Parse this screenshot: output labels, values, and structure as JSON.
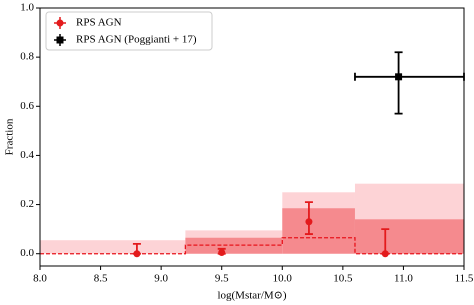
{
  "chart_data": {
    "type": "errorbar",
    "xlabel": "log(Mstar/M⊙)",
    "ylabel": "Fraction",
    "xlim": [
      8.0,
      11.5
    ],
    "ylim": [
      -0.05,
      1.0
    ],
    "xticks": [
      {
        "value": 8.0,
        "label": "8.0"
      },
      8.5,
      {
        "value": 9.0,
        "label": "9.0"
      },
      9.5,
      {
        "value": 10.0,
        "label": "10.0"
      },
      10.5,
      {
        "value": 11.0,
        "label": "11.0"
      },
      11.5
    ],
    "yticks": [
      {
        "value": 0,
        "label": "0.0"
      },
      0.2,
      0.4,
      0.6,
      0.8,
      {
        "value": 1.0,
        "label": "1.0"
      }
    ],
    "legend": "upper left",
    "bins": [
      8.0,
      9.2,
      10.0,
      10.6,
      11.5
    ],
    "step_values": [
      0.0,
      0.035,
      0.065,
      0.0
    ],
    "step_color": "#e8141c",
    "band_outer": [
      0.055,
      0.095,
      0.25,
      0.285
    ],
    "band_outer_color": "#fdd3d6",
    "band_inner": [
      0.0,
      0.065,
      0.185,
      0.14
    ],
    "band_inner_color": "#f58a8e",
    "series": [
      {
        "name": "RPS AGN",
        "color": "#e31a1c",
        "x": [
          8.8,
          9.5,
          10.22,
          10.85
        ],
        "values": [
          0.0,
          0.005,
          0.13,
          0.0
        ],
        "yerr_minus": [
          0.0,
          0.005,
          0.05,
          0.0
        ],
        "yerr_plus": [
          0.04,
          0.015,
          0.08,
          0.1
        ]
      },
      {
        "name": "RPS AGN (Poggianti + 17)",
        "color": "#000000",
        "x": [
          10.96
        ],
        "values": [
          0.72
        ],
        "yerr_minus": [
          0.15
        ],
        "yerr_plus": [
          0.1
        ],
        "xerr_minus": [
          0.36
        ],
        "xerr_plus": [
          0.54
        ]
      }
    ]
  }
}
